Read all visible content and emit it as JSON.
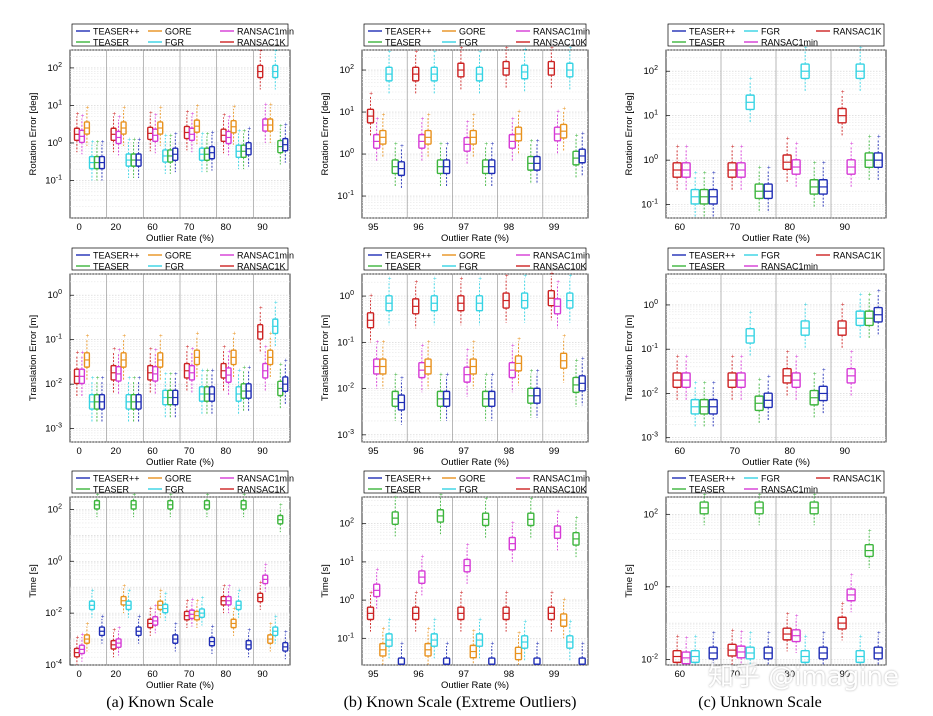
{
  "colors": {
    "TEASER++": "#1f2db5",
    "TEASER": "#3cb53c",
    "GORE": "#e8921e",
    "FGR": "#35d3e3",
    "RANSAC1min": "#d63ad6",
    "RANSAC1K": "#cc2222",
    "RANSAC10K": "#cc2222"
  },
  "captions": {
    "a": "(a) Known Scale",
    "b": "(b) Known Scale (Extreme Outliers)",
    "c": "(c) Unknown Scale"
  },
  "watermark": "知乎 @imagine",
  "chart_data": [
    {
      "type": "boxplot",
      "id": "a-rot",
      "title": "",
      "xlabel": "Outlier Rate (%)",
      "ylabel": "Rotation Error [deg]",
      "yscale": "log",
      "ylim": [
        0.01,
        300
      ],
      "ytick_labels": [
        "10^-1",
        "10^0",
        "10^1",
        "10^2"
      ],
      "legend": [
        "TEASER++",
        "GORE",
        "RANSAC1min",
        "TEASER",
        "FGR",
        "RANSAC1K"
      ],
      "categories": [
        "0",
        "20",
        "60",
        "70",
        "80",
        "90"
      ],
      "series": [
        {
          "name": "RANSAC1K",
          "median": [
            1.7,
            1.7,
            1.8,
            1.9,
            1.6,
            80
          ]
        },
        {
          "name": "RANSAC1min",
          "median": [
            1.5,
            1.4,
            1.6,
            1.7,
            1.4,
            3.0
          ]
        },
        {
          "name": "GORE",
          "median": [
            2.5,
            2.5,
            2.5,
            2.8,
            2.7,
            3.0
          ]
        },
        {
          "name": "FGR",
          "median": [
            0.3,
            0.35,
            0.45,
            0.5,
            0.6,
            80
          ]
        },
        {
          "name": "TEASER",
          "median": [
            0.3,
            0.35,
            0.45,
            0.5,
            0.6,
            0.8
          ]
        },
        {
          "name": "TEASER++",
          "median": [
            0.3,
            0.35,
            0.5,
            0.55,
            0.7,
            0.9
          ]
        }
      ]
    },
    {
      "type": "boxplot",
      "id": "a-trans",
      "xlabel": "Outlier Rate (%)",
      "ylabel": "Translation Error [m]",
      "yscale": "log",
      "ylim": [
        0.0005,
        3
      ],
      "ytick_labels": [
        "10^-3",
        "10^-2",
        "10^-1",
        "10^0"
      ],
      "legend": [
        "TEASER++",
        "GORE",
        "RANSAC1min",
        "TEASER",
        "FGR",
        "RANSAC1K"
      ],
      "categories": [
        "0",
        "20",
        "60",
        "70",
        "80",
        "90"
      ],
      "series": [
        {
          "name": "RANSAC1K",
          "median": [
            0.015,
            0.018,
            0.018,
            0.02,
            0.02,
            0.15
          ]
        },
        {
          "name": "RANSAC1min",
          "median": [
            0.015,
            0.017,
            0.017,
            0.018,
            0.016,
            0.02
          ]
        },
        {
          "name": "GORE",
          "median": [
            0.035,
            0.035,
            0.035,
            0.04,
            0.04,
            0.04
          ]
        },
        {
          "name": "FGR",
          "median": [
            0.004,
            0.004,
            0.005,
            0.006,
            0.006,
            0.2
          ]
        },
        {
          "name": "TEASER",
          "median": [
            0.004,
            0.004,
            0.005,
            0.006,
            0.007,
            0.008
          ]
        },
        {
          "name": "TEASER++",
          "median": [
            0.004,
            0.004,
            0.005,
            0.006,
            0.007,
            0.01
          ]
        }
      ]
    },
    {
      "type": "boxplot",
      "id": "a-time",
      "xlabel": "Outlier Rate (%)",
      "ylabel": "Time [s]",
      "yscale": "log",
      "ylim": [
        0.0001,
        300
      ],
      "ytick_labels": [
        "10^-4",
        "10^-2",
        "10^0",
        "10^2"
      ],
      "legend": [
        "TEASER++",
        "GORE",
        "RANSAC1min",
        "TEASER",
        "FGR",
        "RANSAC1K"
      ],
      "categories": [
        "0",
        "20",
        "60",
        "70",
        "80",
        "90"
      ],
      "series": [
        {
          "name": "RANSAC1K",
          "median": [
            0.0003,
            0.0006,
            0.004,
            0.008,
            0.03,
            0.04
          ]
        },
        {
          "name": "RANSAC1min",
          "median": [
            0.0004,
            0.0007,
            0.005,
            0.009,
            0.03,
            0.2
          ]
        },
        {
          "name": "GORE",
          "median": [
            0.001,
            0.03,
            0.02,
            0.008,
            0.004,
            0.001
          ]
        },
        {
          "name": "FGR",
          "median": [
            0.02,
            0.02,
            0.015,
            0.01,
            0.02,
            0.002
          ]
        },
        {
          "name": "TEASER",
          "median": [
            150,
            150,
            150,
            150,
            150,
            40
          ]
        },
        {
          "name": "TEASER++",
          "median": [
            0.002,
            0.002,
            0.001,
            0.0008,
            0.0006,
            0.0005
          ]
        }
      ]
    },
    {
      "type": "boxplot",
      "id": "b-rot",
      "xlabel": "Outlier Rate (%)",
      "ylabel": "Rotation Error [deg]",
      "yscale": "log",
      "ylim": [
        0.03,
        300
      ],
      "ytick_labels": [
        "10^-1",
        "10^0",
        "10^1",
        "10^2"
      ],
      "legend": [
        "TEASER++",
        "GORE",
        "RANSAC1min",
        "TEASER",
        "FGR",
        "RANSAC10K"
      ],
      "categories": [
        "95",
        "96",
        "97",
        "98",
        "99"
      ],
      "series": [
        {
          "name": "RANSAC10K",
          "median": [
            8,
            80,
            100,
            110,
            110
          ]
        },
        {
          "name": "RANSAC1min",
          "median": [
            2,
            2,
            1.7,
            2,
            3
          ]
        },
        {
          "name": "GORE",
          "median": [
            2.5,
            2.5,
            2.5,
            3,
            3.5
          ]
        },
        {
          "name": "FGR",
          "median": [
            80,
            80,
            80,
            90,
            100
          ]
        },
        {
          "name": "TEASER",
          "median": [
            0.5,
            0.5,
            0.5,
            0.6,
            0.8
          ]
        },
        {
          "name": "TEASER++",
          "median": [
            0.45,
            0.5,
            0.5,
            0.6,
            0.9
          ]
        }
      ]
    },
    {
      "type": "boxplot",
      "id": "b-trans",
      "xlabel": "Outlier Rate (%)",
      "ylabel": "Translation Error [m]",
      "yscale": "log",
      "ylim": [
        0.0007,
        3
      ],
      "ytick_labels": [
        "10^-3",
        "10^-2",
        "10^-1",
        "10^0"
      ],
      "legend": [
        "TEASER++",
        "GORE",
        "RANSAC1min",
        "TEASER",
        "FGR",
        "RANSAC10K"
      ],
      "categories": [
        "95",
        "96",
        "97",
        "98",
        "99"
      ],
      "series": [
        {
          "name": "RANSAC10K",
          "median": [
            0.3,
            0.6,
            0.7,
            0.8,
            0.9
          ]
        },
        {
          "name": "RANSAC1min",
          "median": [
            0.03,
            0.025,
            0.02,
            0.025,
            0.6
          ]
        },
        {
          "name": "GORE",
          "median": [
            0.03,
            0.03,
            0.03,
            0.035,
            0.04
          ]
        },
        {
          "name": "FGR",
          "median": [
            0.7,
            0.7,
            0.7,
            0.8,
            0.8
          ]
        },
        {
          "name": "TEASER",
          "median": [
            0.006,
            0.006,
            0.006,
            0.007,
            0.012
          ]
        },
        {
          "name": "TEASER++",
          "median": [
            0.005,
            0.006,
            0.006,
            0.007,
            0.013
          ]
        }
      ]
    },
    {
      "type": "boxplot",
      "id": "b-time",
      "xlabel": "Outlier Rate (%)",
      "ylabel": "Time [s]",
      "yscale": "log",
      "ylim": [
        0.02,
        500
      ],
      "ytick_labels": [
        "10^-1",
        "10^0",
        "10^1",
        "10^2"
      ],
      "legend": [
        "TEASER++",
        "GORE",
        "RANSAC1min",
        "TEASER",
        "FGR",
        "RANSAC10K"
      ],
      "categories": [
        "95",
        "96",
        "97",
        "98",
        "99"
      ],
      "series": [
        {
          "name": "RANSAC10K",
          "median": [
            0.45,
            0.45,
            0.45,
            0.45,
            0.45
          ]
        },
        {
          "name": "RANSAC1min",
          "median": [
            1.8,
            4,
            8,
            30,
            60
          ]
        },
        {
          "name": "GORE",
          "median": [
            0.05,
            0.05,
            0.045,
            0.04,
            0.3
          ]
        },
        {
          "name": "FGR",
          "median": [
            0.09,
            0.09,
            0.09,
            0.08,
            0.08
          ]
        },
        {
          "name": "TEASER",
          "median": [
            140,
            160,
            130,
            130,
            40
          ]
        },
        {
          "name": "TEASER++",
          "median": [
            0.021,
            0.021,
            0.021,
            0.021,
            0.021
          ]
        }
      ]
    },
    {
      "type": "boxplot",
      "id": "c-rot",
      "xlabel": "Outlier Rate (%)",
      "ylabel": "Rotation Error [deg]",
      "yscale": "log",
      "ylim": [
        0.05,
        300
      ],
      "ytick_labels": [
        "10^-1",
        "10^0",
        "10^1",
        "10^2"
      ],
      "legend": [
        "TEASER++",
        "FGR",
        "RANSAC1K",
        "TEASER",
        "RANSAC1min"
      ],
      "categories": [
        "60",
        "70",
        "80",
        "90"
      ],
      "series": [
        {
          "name": "RANSAC1K",
          "median": [
            0.6,
            0.6,
            0.9,
            10
          ]
        },
        {
          "name": "RANSAC1min",
          "median": [
            0.6,
            0.6,
            0.7,
            0.7
          ]
        },
        {
          "name": "FGR",
          "median": [
            0.15,
            20,
            100,
            100
          ]
        },
        {
          "name": "TEASER",
          "median": [
            0.15,
            0.2,
            0.25,
            1
          ]
        },
        {
          "name": "TEASER++",
          "median": [
            0.15,
            0.2,
            0.25,
            1
          ]
        }
      ]
    },
    {
      "type": "boxplot",
      "id": "c-trans",
      "xlabel": "Outlier Rate (%)",
      "ylabel": "Translation Error [m]",
      "yscale": "log",
      "ylim": [
        0.0008,
        5
      ],
      "ytick_labels": [
        "10^-3",
        "10^-2",
        "10^-1",
        "10^0"
      ],
      "legend": [
        "TEASER++",
        "FGR",
        "RANSAC1K",
        "TEASER",
        "RANSAC1min"
      ],
      "categories": [
        "60",
        "70",
        "80",
        "90"
      ],
      "series": [
        {
          "name": "RANSAC1K",
          "median": [
            0.02,
            0.02,
            0.025,
            0.3
          ]
        },
        {
          "name": "RANSAC1min",
          "median": [
            0.02,
            0.02,
            0.02,
            0.025
          ]
        },
        {
          "name": "FGR",
          "median": [
            0.005,
            0.2,
            0.3,
            0.5
          ]
        },
        {
          "name": "TEASER",
          "median": [
            0.005,
            0.006,
            0.008,
            0.5
          ]
        },
        {
          "name": "TEASER++",
          "median": [
            0.005,
            0.007,
            0.01,
            0.6
          ]
        }
      ]
    },
    {
      "type": "boxplot",
      "id": "c-time",
      "xlabel": "",
      "ylabel": "Time [s]",
      "yscale": "log",
      "ylim": [
        0.007,
        300
      ],
      "ytick_labels": [
        "10^-2",
        "10^0",
        "10^2"
      ],
      "legend": [
        "TEASER++",
        "FGR",
        "RANSAC1K",
        "TEASER",
        "RANSAC1min"
      ],
      "categories": [
        "60",
        "70",
        "80",
        "90"
      ],
      "series": [
        {
          "name": "RANSAC1K",
          "median": [
            0.012,
            0.018,
            0.05,
            0.1
          ]
        },
        {
          "name": "RANSAC1min",
          "median": [
            0.011,
            0.016,
            0.045,
            0.6
          ]
        },
        {
          "name": "FGR",
          "median": [
            0.012,
            0.015,
            0.012,
            0.012
          ]
        },
        {
          "name": "TEASER",
          "median": [
            150,
            150,
            150,
            10
          ]
        },
        {
          "name": "TEASER++",
          "median": [
            0.015,
            0.015,
            0.015,
            0.015
          ]
        }
      ]
    }
  ]
}
